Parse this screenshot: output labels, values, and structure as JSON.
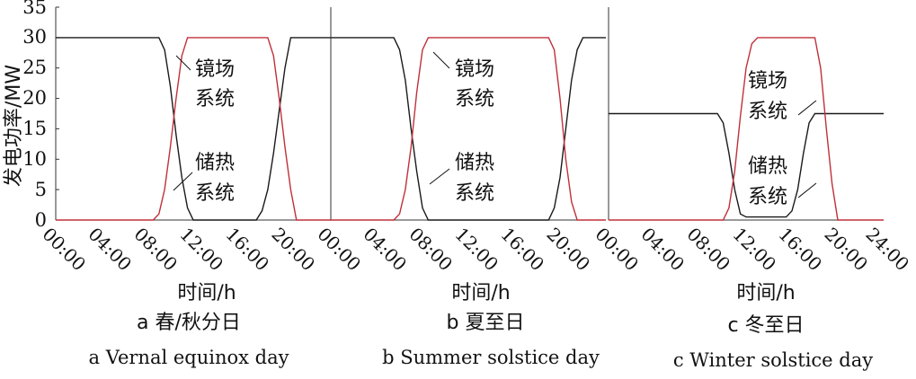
{
  "chart_data": [
    {
      "type": "line",
      "panel_label": "a",
      "caption_zh": "a 春/秋分日",
      "caption_en": "a Vernal equinox day",
      "xlabel": "时间/h",
      "ylabel": "发电功率/MW",
      "ylim": [
        0,
        35
      ],
      "yticks": [
        "0",
        "5",
        "10",
        "15",
        "20",
        "25",
        "30",
        "35"
      ],
      "xticks": [
        "00:00",
        "04:00",
        "08:00",
        "12:00",
        "16:00",
        "20:00"
      ],
      "series": [
        {
          "key": "storage",
          "color": "#1a1a1a",
          "x": [
            0,
            9,
            9.5,
            10,
            10.5,
            11,
            11.5,
            12,
            17.5,
            18,
            18.5,
            19,
            19.5,
            20,
            20.5,
            24
          ],
          "y": [
            30,
            30,
            28,
            22,
            14,
            7,
            2,
            0,
            0,
            1.5,
            5,
            11,
            18,
            25,
            30,
            30
          ]
        },
        {
          "key": "heliostat",
          "color": "#c0303a",
          "x": [
            0,
            8.5,
            9,
            9.5,
            10,
            10.5,
            11,
            11.5,
            18.5,
            19,
            19.5,
            20,
            20.5,
            21,
            24
          ],
          "y": [
            0,
            0,
            1,
            5,
            12,
            20,
            27,
            30,
            30,
            27,
            20,
            12,
            5,
            0,
            0
          ]
        }
      ],
      "annotations": [
        {
          "lines": [
            "镜场",
            "系统"
          ]
        },
        {
          "lines": [
            "储热",
            "系统"
          ]
        }
      ]
    },
    {
      "type": "line",
      "panel_label": "b",
      "caption_zh": "b 夏至日",
      "caption_en": "b Summer solstice day",
      "xlabel": "时间/h",
      "ylim": [
        0,
        35
      ],
      "xticks": [
        "00:00",
        "04:00",
        "08:00",
        "12:00",
        "16:00",
        "20:00"
      ],
      "series": [
        {
          "key": "storage",
          "color": "#1a1a1a",
          "x": [
            0,
            5.5,
            6,
            6.5,
            7,
            7.5,
            8,
            8.5,
            19,
            19.5,
            20,
            20.5,
            21,
            21.5,
            22,
            24
          ],
          "y": [
            30,
            30,
            28,
            23,
            15,
            8,
            2,
            0,
            0,
            2,
            7,
            15,
            23,
            28,
            30,
            30
          ]
        },
        {
          "key": "heliostat",
          "color": "#c0303a",
          "x": [
            0,
            5.5,
            6,
            6.5,
            7,
            7.5,
            8,
            8.5,
            19,
            19.5,
            20,
            20.5,
            21,
            21.5,
            24
          ],
          "y": [
            0,
            0,
            1,
            5,
            12,
            21,
            28,
            30,
            30,
            28,
            20,
            10,
            3,
            0,
            0
          ]
        }
      ],
      "annotations": [
        {
          "lines": [
            "镜场",
            "系统"
          ]
        },
        {
          "lines": [
            "储热",
            "系统"
          ]
        }
      ]
    },
    {
      "type": "line",
      "panel_label": "c",
      "caption_zh": "c 冬至日",
      "caption_en": "c Winter solstice day",
      "xlabel": "时间/h",
      "ylim": [
        0,
        35
      ],
      "xticks": [
        "00:00",
        "04:00",
        "08:00",
        "12:00",
        "16:00",
        "20:00",
        "24:00"
      ],
      "series": [
        {
          "key": "storage",
          "color": "#1a1a1a",
          "x": [
            0,
            9.5,
            10,
            10.5,
            11,
            11.5,
            12,
            15.5,
            16,
            16.5,
            17,
            17.5,
            18,
            24
          ],
          "y": [
            17.5,
            17.5,
            16,
            11,
            5,
            1,
            0.5,
            0.5,
            1.5,
            5,
            11,
            16,
            17.5,
            17.5
          ]
        },
        {
          "key": "heliostat",
          "color": "#c0303a",
          "x": [
            0,
            10,
            10.5,
            11,
            11.5,
            12,
            12.5,
            13,
            18,
            18.5,
            19,
            19.5,
            20,
            24
          ],
          "y": [
            0,
            0,
            2,
            8,
            17,
            25,
            29,
            30,
            30,
            25,
            15,
            6,
            0,
            0
          ]
        }
      ],
      "annotations": [
        {
          "lines": [
            "镜场",
            "系统"
          ]
        },
        {
          "lines": [
            "储热",
            "系统"
          ]
        }
      ]
    }
  ]
}
